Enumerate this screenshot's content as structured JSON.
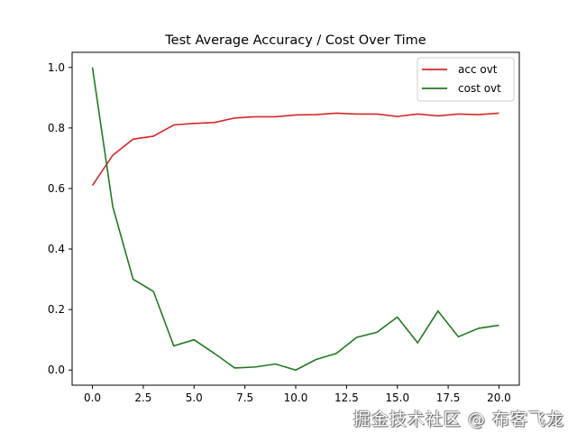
{
  "chart_data": {
    "type": "line",
    "title": "Test Average Accuracy / Cost Over Time",
    "xlabel": "",
    "ylabel": "",
    "xlim": [
      -1,
      21
    ],
    "ylim": [
      -0.05,
      1.05
    ],
    "xticks": [
      "0.0",
      "2.5",
      "5.0",
      "7.5",
      "10.0",
      "12.5",
      "15.0",
      "17.5",
      "20.0"
    ],
    "xtick_values": [
      0,
      2.5,
      5,
      7.5,
      10,
      12.5,
      15,
      17.5,
      20
    ],
    "yticks": [
      "0.0",
      "0.2",
      "0.4",
      "0.6",
      "0.8",
      "1.0"
    ],
    "ytick_values": [
      0,
      0.2,
      0.4,
      0.6,
      0.8,
      1.0
    ],
    "grid": false,
    "legend_position": "top-right",
    "x": [
      0,
      1,
      2,
      3,
      4,
      5,
      6,
      7,
      8,
      9,
      10,
      11,
      12,
      13,
      14,
      15,
      16,
      17,
      18,
      19,
      20
    ],
    "series": [
      {
        "name": "acc ovt",
        "color": "#d62728",
        "values": [
          0.61,
          0.71,
          0.763,
          0.773,
          0.81,
          0.815,
          0.818,
          0.833,
          0.837,
          0.837,
          0.843,
          0.844,
          0.849,
          0.846,
          0.846,
          0.838,
          0.846,
          0.84,
          0.846,
          0.844,
          0.849
        ]
      },
      {
        "name": "cost ovt",
        "color": "#1f7a1f",
        "values": [
          1.0,
          0.54,
          0.3,
          0.26,
          0.08,
          0.1,
          0.055,
          0.007,
          0.01,
          0.02,
          0.0,
          0.035,
          0.055,
          0.108,
          0.125,
          0.175,
          0.09,
          0.195,
          0.11,
          0.138,
          0.148
        ]
      }
    ]
  },
  "watermark": "掘金技术社区 @ 布客飞龙"
}
